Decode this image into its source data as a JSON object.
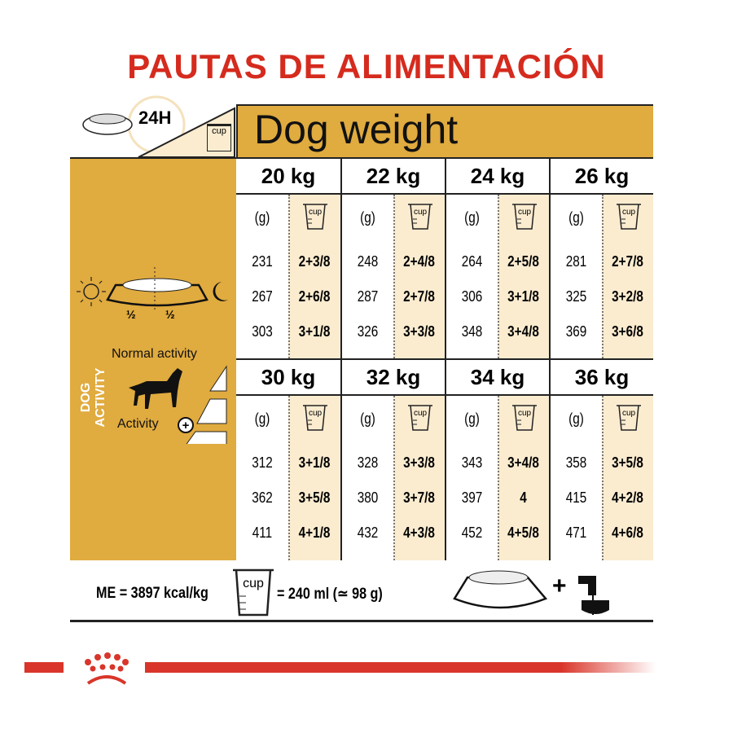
{
  "title": "PAUTAS DE ALIMENTACIÓN",
  "header": {
    "label_24h": "24H",
    "cup_label": "cup",
    "dog_weight": "Dog weight"
  },
  "left_panel": {
    "half_left": "½",
    "half_right": "½",
    "dog_activity": "DOG ACTIVITY",
    "normal_activity": "Normal activity",
    "activity": "Activity"
  },
  "columns_unit": "(g)",
  "weights": [
    {
      "kg": "20 kg",
      "rows": [
        [
          "231",
          "2+3/8"
        ],
        [
          "267",
          "2+6/8"
        ],
        [
          "303",
          "3+1/8"
        ]
      ]
    },
    {
      "kg": "22 kg",
      "rows": [
        [
          "248",
          "2+4/8"
        ],
        [
          "287",
          "2+7/8"
        ],
        [
          "326",
          "3+3/8"
        ]
      ]
    },
    {
      "kg": "24 kg",
      "rows": [
        [
          "264",
          "2+5/8"
        ],
        [
          "306",
          "3+1/8"
        ],
        [
          "348",
          "3+4/8"
        ]
      ]
    },
    {
      "kg": "26 kg",
      "rows": [
        [
          "281",
          "2+7/8"
        ],
        [
          "325",
          "3+2/8"
        ],
        [
          "369",
          "3+6/8"
        ]
      ]
    },
    {
      "kg": "30 kg",
      "rows": [
        [
          "312",
          "3+1/8"
        ],
        [
          "362",
          "3+5/8"
        ],
        [
          "411",
          "4+1/8"
        ]
      ]
    },
    {
      "kg": "32 kg",
      "rows": [
        [
          "328",
          "3+3/8"
        ],
        [
          "380",
          "3+7/8"
        ],
        [
          "432",
          "4+3/8"
        ]
      ]
    },
    {
      "kg": "34 kg",
      "rows": [
        [
          "343",
          "3+4/8"
        ],
        [
          "397",
          "4"
        ],
        [
          "452",
          "4+5/8"
        ]
      ]
    },
    {
      "kg": "36 kg",
      "rows": [
        [
          "358",
          "3+5/8"
        ],
        [
          "415",
          "4+2/8"
        ],
        [
          "471",
          "4+6/8"
        ]
      ]
    }
  ],
  "footer": {
    "me": "ME = 3897 kcal/kg",
    "cup_equiv": "= 240 ml (≃ 98 g)",
    "plus": "+"
  },
  "colors": {
    "title_red": "#d52b1e",
    "gold": "#e0ab3f",
    "cream": "#fbecd0"
  }
}
